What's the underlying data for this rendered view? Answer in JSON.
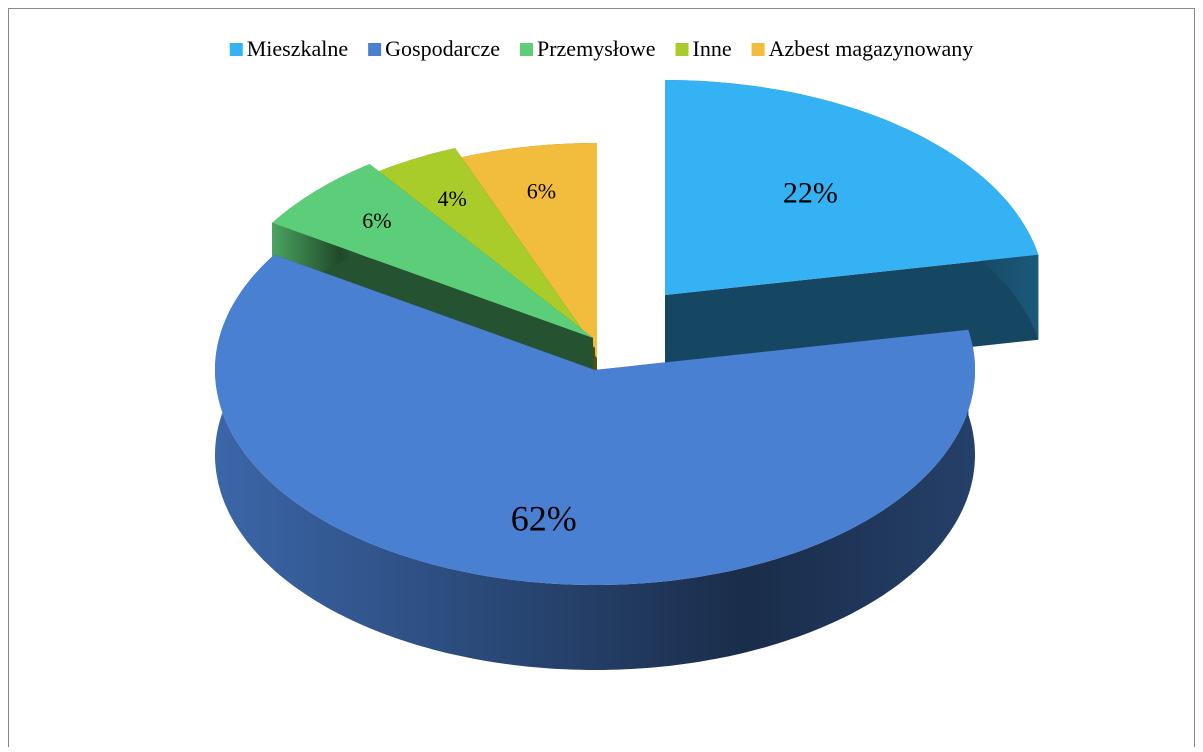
{
  "chart_data": {
    "type": "pie",
    "categories": [
      "Mieszkalne",
      "Gospodarcze",
      "Przemysłowe",
      "Inne",
      "Azbest magazynowany"
    ],
    "values": [
      22,
      62,
      6,
      4,
      6
    ],
    "value_labels": [
      "22%",
      "62%",
      "6%",
      "4%",
      "6%"
    ],
    "colors": [
      "#35b2f4",
      "#4a80d2",
      "#5ccd78",
      "#a9cc2a",
      "#f2bc3c"
    ],
    "legend": "top"
  }
}
